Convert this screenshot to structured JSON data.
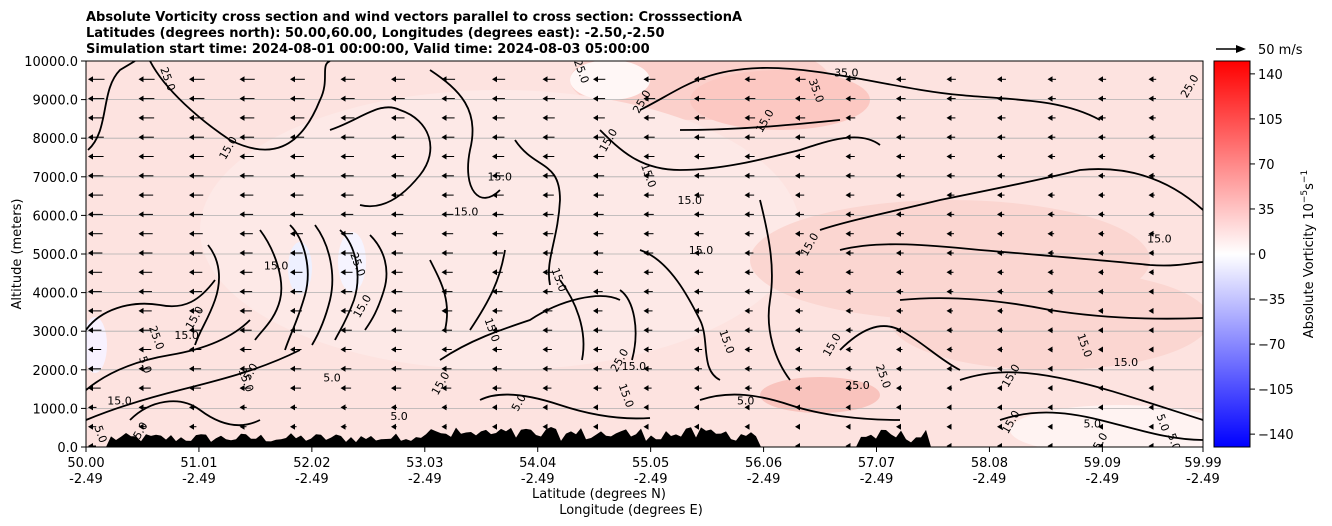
{
  "chart_data": {
    "type": "heatmap",
    "title_lines": [
      "Absolute Vorticity cross section and wind vectors parallel to cross section: CrosssectionA",
      "Latitudes (degrees north): 50.00,60.00, Longitudes (degrees east): -2.50,-2.50",
      "Simulation start time: 2024-08-01 00:00:00, Valid time: 2024-08-03 05:00:00"
    ],
    "xlabel_lines": [
      "Latitude (degrees N)",
      "Longitude (degrees E)"
    ],
    "ylabel": "Altitude (meters)",
    "x_ticks": [
      {
        "lat": "50.00",
        "lon": "-2.49"
      },
      {
        "lat": "51.01",
        "lon": "-2.49"
      },
      {
        "lat": "52.02",
        "lon": "-2.49"
      },
      {
        "lat": "53.03",
        "lon": "-2.49"
      },
      {
        "lat": "54.04",
        "lon": "-2.49"
      },
      {
        "lat": "55.05",
        "lon": "-2.49"
      },
      {
        "lat": "56.06",
        "lon": "-2.49"
      },
      {
        "lat": "57.07",
        "lon": "-2.49"
      },
      {
        "lat": "58.08",
        "lon": "-2.49"
      },
      {
        "lat": "59.09",
        "lon": "-2.49"
      },
      {
        "lat": "59.99",
        "lon": "-2.49"
      }
    ],
    "xlim": [
      50.0,
      59.99
    ],
    "y_ticks": [
      "0.0",
      "1000.0",
      "2000.0",
      "3000.0",
      "4000.0",
      "5000.0",
      "6000.0",
      "7000.0",
      "8000.0",
      "9000.0",
      "10000.0"
    ],
    "ylim": [
      0,
      10000
    ],
    "grid": "horizontal",
    "colorbar": {
      "label": "Absolute Vorticity 10$^{-5}$s$^{-1}$",
      "label_main": "Absolute Vorticity 10",
      "label_sup": "−5",
      "label_unit": "s",
      "label_unit_sup": "−1",
      "range": [
        -150,
        150
      ],
      "ticks": [
        "140",
        "105",
        "70",
        "35",
        "0",
        "−35",
        "−70",
        "−105",
        "−140"
      ],
      "colormap": "bwr",
      "low_color": "#0000ff",
      "mid_color": "#ffffff",
      "high_color": "#ff0000"
    },
    "quiver_key": {
      "label": "50 m/s",
      "speed": 50
    },
    "contour_levels_labeled": [
      "5.0",
      "15.0",
      "25.0",
      "35.0"
    ],
    "contour_labels": [
      {
        "text": "15.0",
        "lat": 51.3,
        "alt": 7700
      },
      {
        "text": "25.0",
        "lat": 50.7,
        "alt": 9500
      },
      {
        "text": "15.0",
        "lat": 53.4,
        "alt": 6000
      },
      {
        "text": "15.0",
        "lat": 52.5,
        "alt": 3600
      },
      {
        "text": "25.0",
        "lat": 52.4,
        "alt": 4700
      },
      {
        "text": "15.0",
        "lat": 53.7,
        "alt": 6900
      },
      {
        "text": "15.0",
        "lat": 54.7,
        "alt": 7900
      },
      {
        "text": "15.0",
        "lat": 55.0,
        "alt": 7000
      },
      {
        "text": "15.0",
        "lat": 55.4,
        "alt": 6300
      },
      {
        "text": "25.0",
        "lat": 55.0,
        "alt": 8900
      },
      {
        "text": "35.0",
        "lat": 56.5,
        "alt": 9200
      },
      {
        "text": "35.0",
        "lat": 56.8,
        "alt": 9600
      },
      {
        "text": "15.0",
        "lat": 56.1,
        "alt": 8400
      },
      {
        "text": "25.0",
        "lat": 54.4,
        "alt": 9700
      },
      {
        "text": "15.0",
        "lat": 55.5,
        "alt": 5000
      },
      {
        "text": "15.0",
        "lat": 56.5,
        "alt": 5200
      },
      {
        "text": "15.0",
        "lat": 54.2,
        "alt": 4300
      },
      {
        "text": "15.0",
        "lat": 59.6,
        "alt": 5300
      },
      {
        "text": "25.0",
        "lat": 59.9,
        "alt": 9300
      },
      {
        "text": "15.0",
        "lat": 58.9,
        "alt": 2600
      },
      {
        "text": "15.0",
        "lat": 59.3,
        "alt": 2100
      },
      {
        "text": "15.0",
        "lat": 58.3,
        "alt": 1800
      },
      {
        "text": "25.0",
        "lat": 57.1,
        "alt": 1800
      },
      {
        "text": "25.0",
        "lat": 56.9,
        "alt": 1500
      },
      {
        "text": "15.0",
        "lat": 56.7,
        "alt": 2600
      },
      {
        "text": "15.0",
        "lat": 55.7,
        "alt": 2700
      },
      {
        "text": "15.0",
        "lat": 54.9,
        "alt": 2000
      },
      {
        "text": "25.0",
        "lat": 54.8,
        "alt": 2200
      },
      {
        "text": "15.0",
        "lat": 53.6,
        "alt": 3000
      },
      {
        "text": "15.0",
        "lat": 51.7,
        "alt": 4600
      },
      {
        "text": "15.0",
        "lat": 51.0,
        "alt": 3300
      },
      {
        "text": "25.0",
        "lat": 50.6,
        "alt": 2800
      },
      {
        "text": "15.0",
        "lat": 50.9,
        "alt": 2800
      },
      {
        "text": "5.0",
        "lat": 51.5,
        "alt": 1900
      },
      {
        "text": "15.0",
        "lat": 51.4,
        "alt": 1700
      },
      {
        "text": "5.0",
        "lat": 52.2,
        "alt": 1700
      },
      {
        "text": "15.0",
        "lat": 53.2,
        "alt": 1600
      },
      {
        "text": "5.0",
        "lat": 50.5,
        "alt": 2100
      },
      {
        "text": "15.0",
        "lat": 50.3,
        "alt": 1100
      },
      {
        "text": "25.0",
        "lat": 50.5,
        "alt": 300
      },
      {
        "text": "5.0",
        "lat": 50.1,
        "alt": 300
      },
      {
        "text": "5.0",
        "lat": 52.8,
        "alt": 700
      },
      {
        "text": "5.0",
        "lat": 53.9,
        "alt": 1100
      },
      {
        "text": "15.0",
        "lat": 54.8,
        "alt": 1300
      },
      {
        "text": "5.0",
        "lat": 55.9,
        "alt": 1100
      },
      {
        "text": "15.0",
        "lat": 58.3,
        "alt": 600
      },
      {
        "text": "5.0",
        "lat": 59.6,
        "alt": 600
      },
      {
        "text": "5.0",
        "lat": 59.0,
        "alt": 500
      },
      {
        "text": "5.0",
        "lat": 59.1,
        "alt": 100
      },
      {
        "text": "5.0",
        "lat": 59.7,
        "alt": 100
      }
    ]
  }
}
